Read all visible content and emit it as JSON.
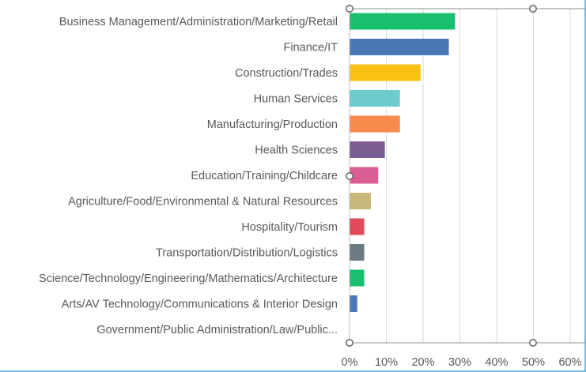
{
  "chart_data": {
    "type": "bar",
    "orientation": "horizontal",
    "title": "",
    "xlabel": "",
    "ylabel": "",
    "xlim": [
      0,
      60
    ],
    "x_tick_values": [
      0,
      10,
      20,
      30,
      40,
      50,
      60
    ],
    "x_tick_labels": [
      "0%",
      "10%",
      "20%",
      "30%",
      "40%",
      "50%",
      "60%"
    ],
    "categories": [
      "Business Management/Administration/Marketing/Retail",
      "Finance/IT",
      "Construction/Trades",
      "Human Services",
      "Manufacturing/Production",
      "Health Sciences",
      "Education/Training/Childcare",
      "Agriculture/Food/Environmental & Natural Resources",
      "Hospitality/Tourism",
      "Transportation/Distribution/Logistics",
      "Science/Technology/Engineering/Mathematics/Architecture",
      "Arts/AV Technology/Communications & Interior Design",
      "Government/Public Administration/Law/Public..."
    ],
    "values": [
      28.7,
      27.0,
      19.3,
      13.7,
      13.7,
      9.6,
      7.8,
      5.8,
      4.0,
      4.0,
      4.0,
      2.1,
      0
    ],
    "colors": [
      "#17bf6f",
      "#4a78b5",
      "#f9c114",
      "#6ecbcd",
      "#fa8b4f",
      "#7b5c93",
      "#d95e93",
      "#c8b87c",
      "#e04a5b",
      "#6c7a82",
      "#17bf6f",
      "#4a78b5",
      "#cccccc"
    ],
    "grid": true,
    "legend": "none"
  }
}
